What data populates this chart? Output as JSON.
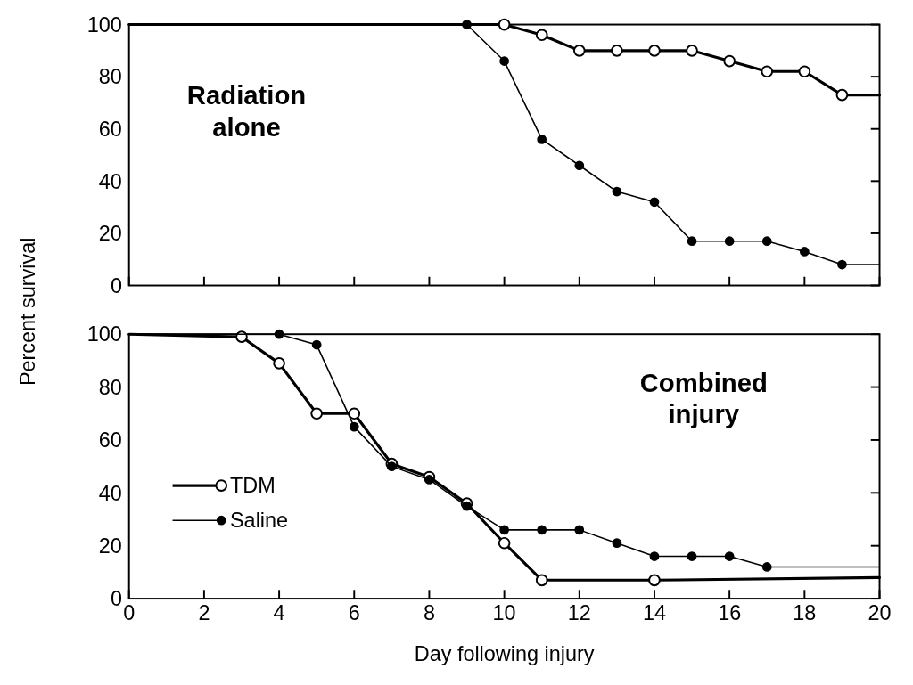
{
  "chart_data": [
    {
      "type": "line",
      "title": "Radiation alone",
      "ylabel": "Percent survival",
      "xlim": [
        0,
        20
      ],
      "ylim": [
        0,
        100
      ],
      "xticks": [
        0,
        2,
        4,
        6,
        8,
        10,
        12,
        14,
        16,
        18,
        20
      ],
      "yticks": [
        0,
        20,
        40,
        60,
        80,
        100
      ],
      "tick_labels": "y",
      "marker": "circle",
      "line_style": "solid",
      "grid": false,
      "legend": false,
      "series": [
        {
          "color": "#000000",
          "x": [
            0,
            10,
            11,
            12,
            13,
            14,
            15,
            16,
            17,
            18,
            19,
            20
          ],
          "values": [
            100,
            100,
            96,
            90,
            90,
            90,
            90,
            86,
            82,
            82,
            73,
            73
          ]
        },
        {
          "color": "#000000",
          "x": [
            0,
            9,
            10,
            11,
            12,
            13,
            14,
            15,
            16,
            17,
            18,
            19,
            20
          ],
          "values": [
            100,
            100,
            86,
            56,
            46,
            36,
            32,
            17,
            17,
            17,
            13,
            8,
            8
          ]
        }
      ]
    },
    {
      "type": "line",
      "title": "Combined injury",
      "xlabel": "Day  following injury",
      "xlim": [
        0,
        20
      ],
      "ylim": [
        0,
        100
      ],
      "xticks": [
        0,
        2,
        4,
        6,
        8,
        10,
        12,
        14,
        16,
        18,
        20
      ],
      "yticks": [
        0,
        20,
        40,
        60,
        80,
        100
      ],
      "marker": "circle",
      "line_style": "solid",
      "grid": false,
      "legend": "bottom left",
      "series": [
        {
          "name": "TDM",
          "color": "#000000",
          "x": [
            0,
            3,
            4,
            5,
            6,
            7,
            8,
            9,
            10,
            11,
            14,
            20
          ],
          "values": [
            100,
            99,
            89,
            70,
            70,
            51,
            46,
            36,
            21,
            7,
            7,
            8
          ]
        },
        {
          "name": "Saline",
          "color": "#000000",
          "x": [
            0,
            4,
            5,
            6,
            7,
            8,
            9,
            10,
            11,
            12,
            13,
            14,
            15,
            16,
            17,
            20
          ],
          "values": [
            100,
            100,
            96,
            65,
            50,
            45,
            35,
            26,
            26,
            26,
            21,
            16,
            16,
            16,
            12,
            12
          ]
        }
      ]
    }
  ]
}
